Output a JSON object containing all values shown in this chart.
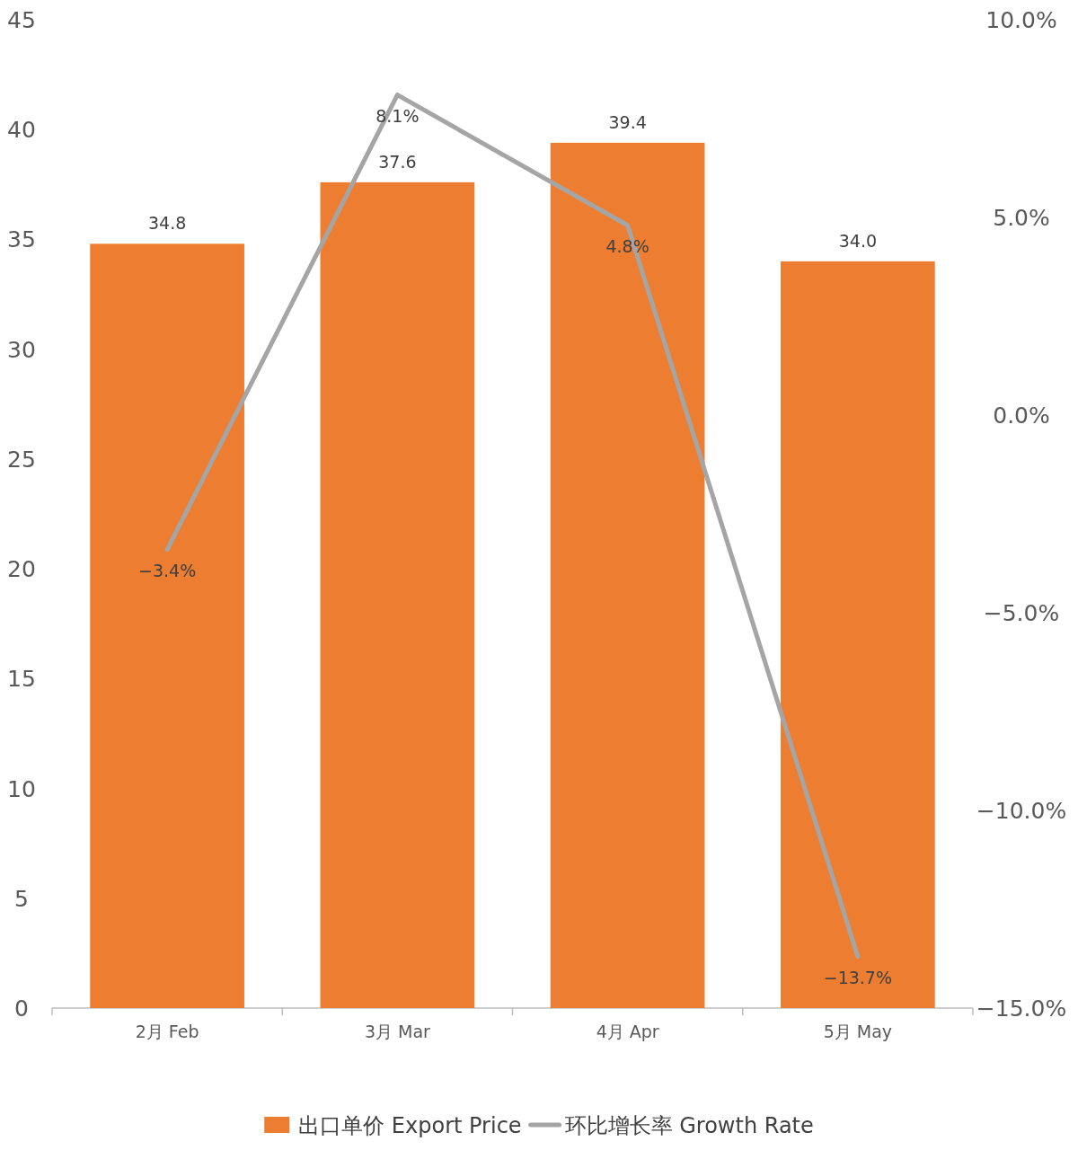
{
  "chart_data": {
    "type": "bar",
    "categories": [
      "2月 Feb",
      "3月 Mar",
      "4月 Apr",
      "5月 May"
    ],
    "series": [
      {
        "name": "出口单价 Export Price",
        "color": "#ed7d31",
        "values": [
          34.8,
          37.6,
          39.4,
          34.0
        ],
        "value_labels": [
          "34.8",
          "37.6",
          "39.4",
          "34.0"
        ]
      },
      {
        "name": "环比增长率 Growth Rate",
        "type": "line",
        "axis": "y2",
        "color": "#a5a5a5",
        "values": [
          -3.4,
          8.1,
          4.8,
          -13.7
        ],
        "value_labels": [
          "−3.4%",
          "8.1%",
          "4.8%",
          "−13.7%"
        ]
      }
    ],
    "ylim": [
      0,
      45
    ],
    "yticks": [
      0,
      5,
      10,
      15,
      20,
      25,
      30,
      35,
      40,
      45
    ],
    "y2lim": [
      -15,
      10
    ],
    "y2ticks": [
      {
        "value": -15,
        "label": "−15.0%"
      },
      {
        "value": -10,
        "label": "−10.0%"
      },
      {
        "value": -5,
        "label": "−5.0%"
      },
      {
        "value": 0,
        "label": "0.0%"
      },
      {
        "value": 5,
        "label": "5.0%"
      },
      {
        "value": 10,
        "label": "10.0%"
      }
    ],
    "legend": "bottom",
    "grid": false
  }
}
